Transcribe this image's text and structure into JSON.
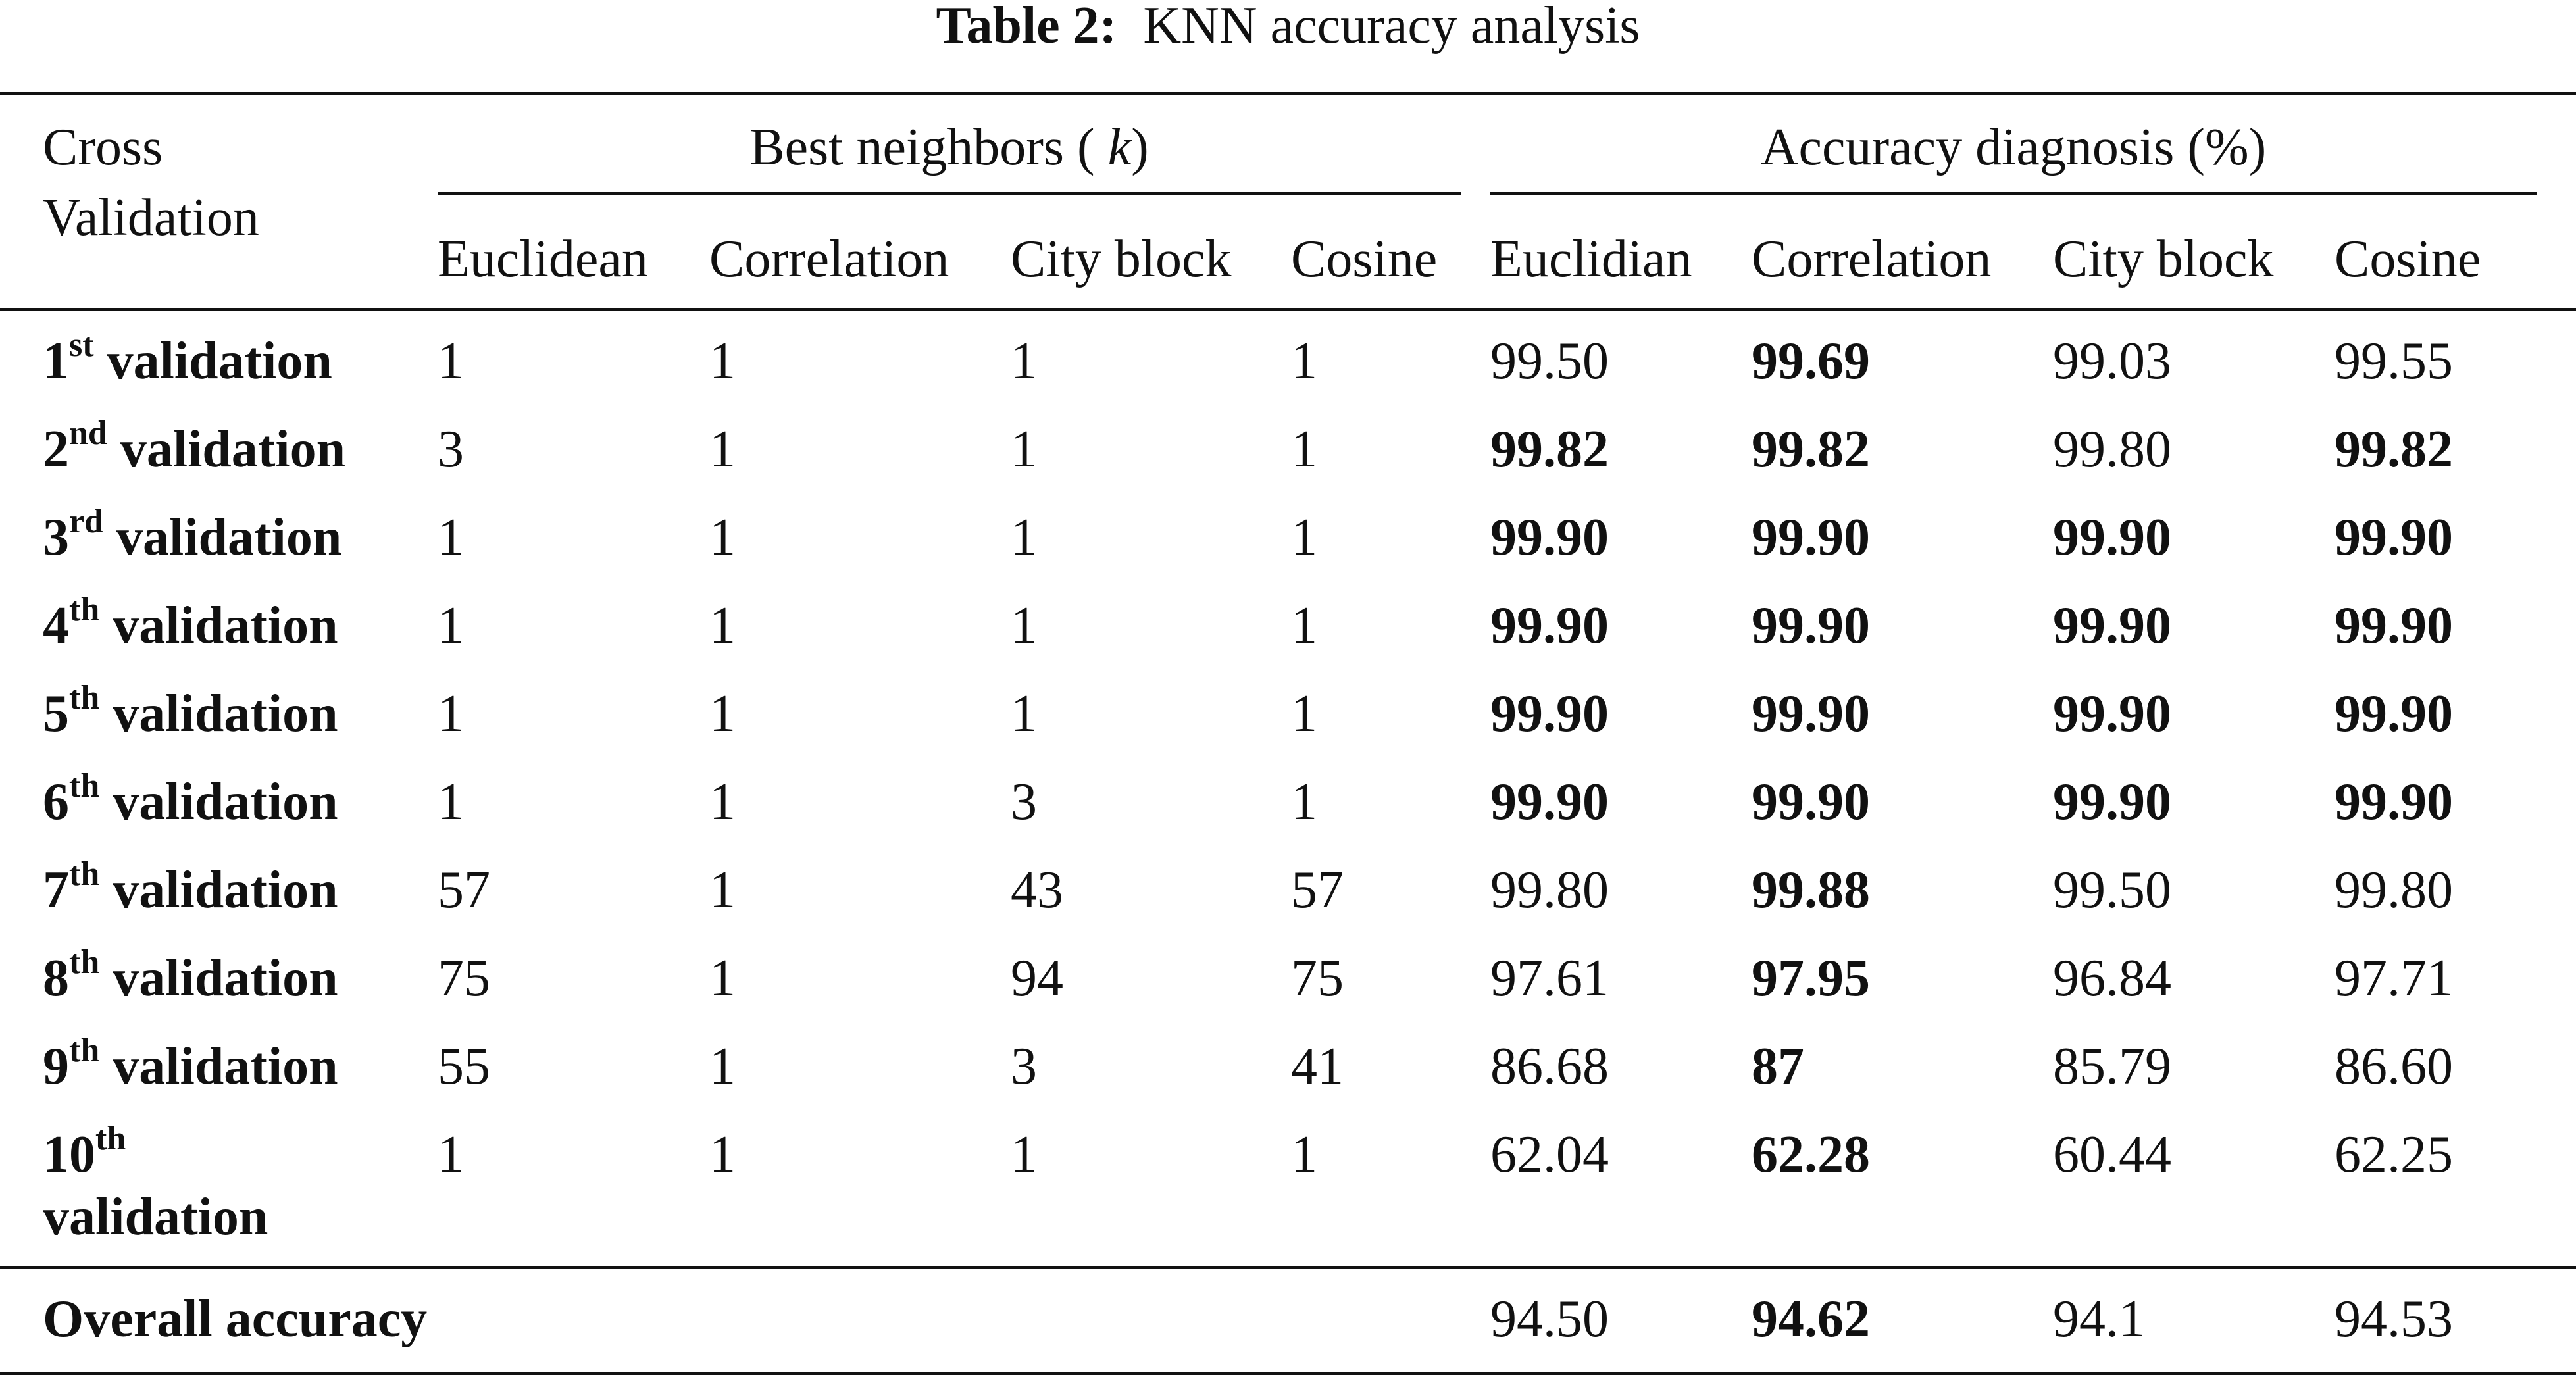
{
  "caption": {
    "label": "Table 2:",
    "text": "KNN accuracy analysis"
  },
  "header": {
    "row_header_line1": "Cross",
    "row_header_line2": "Validation",
    "group_neighbors": {
      "prefix": "Best neighbors (",
      "variable": "k",
      "suffix": ")"
    },
    "group_accuracy": "Accuracy diagnosis (%)",
    "neighbor_columns": [
      "Euclidean",
      "Correlation",
      "City block",
      "Cosine"
    ],
    "accuracy_columns": [
      "Euclidian",
      "Correlation",
      "City block",
      "Cosine"
    ]
  },
  "rows": [
    {
      "num": "1",
      "ord": "st",
      "word": "validation",
      "k": [
        "1",
        "1",
        "1",
        "1"
      ],
      "acc": [
        "99.50",
        "99.69",
        "99.03",
        "99.55"
      ],
      "bold": [
        false,
        true,
        false,
        false
      ]
    },
    {
      "num": "2",
      "ord": "nd",
      "word": "validation",
      "k": [
        "3",
        "1",
        "1",
        "1"
      ],
      "acc": [
        "99.82",
        "99.82",
        "99.80",
        "99.82"
      ],
      "bold": [
        true,
        true,
        false,
        true
      ]
    },
    {
      "num": "3",
      "ord": "rd",
      "word": "validation",
      "k": [
        "1",
        "1",
        "1",
        "1"
      ],
      "acc": [
        "99.90",
        "99.90",
        "99.90",
        "99.90"
      ],
      "bold": [
        true,
        true,
        true,
        true
      ]
    },
    {
      "num": "4",
      "ord": "th",
      "word": "validation",
      "k": [
        "1",
        "1",
        "1",
        "1"
      ],
      "acc": [
        "99.90",
        "99.90",
        "99.90",
        "99.90"
      ],
      "bold": [
        true,
        true,
        true,
        true
      ]
    },
    {
      "num": "5",
      "ord": "th",
      "word": "validation",
      "k": [
        "1",
        "1",
        "1",
        "1"
      ],
      "acc": [
        "99.90",
        "99.90",
        "99.90",
        "99.90"
      ],
      "bold": [
        true,
        true,
        true,
        true
      ]
    },
    {
      "num": "6",
      "ord": "th",
      "word": "validation",
      "k": [
        "1",
        "1",
        "3",
        "1"
      ],
      "acc": [
        "99.90",
        "99.90",
        "99.90",
        "99.90"
      ],
      "bold": [
        true,
        true,
        true,
        true
      ]
    },
    {
      "num": "7",
      "ord": "th",
      "word": "validation",
      "k": [
        "57",
        "1",
        "43",
        "57"
      ],
      "acc": [
        "99.80",
        "99.88",
        "99.50",
        "99.80"
      ],
      "bold": [
        false,
        true,
        false,
        false
      ]
    },
    {
      "num": "8",
      "ord": "th",
      "word": "validation",
      "k": [
        "75",
        "1",
        "94",
        "75"
      ],
      "acc": [
        "97.61",
        "97.95",
        "96.84",
        "97.71"
      ],
      "bold": [
        false,
        true,
        false,
        false
      ]
    },
    {
      "num": "9",
      "ord": "th",
      "word": "validation",
      "k": [
        "55",
        "1",
        "3",
        "41"
      ],
      "acc": [
        "86.68",
        "87",
        "85.79",
        "86.60"
      ],
      "bold": [
        false,
        true,
        false,
        false
      ]
    },
    {
      "num": "10",
      "ord": "th",
      "word": "validation",
      "k": [
        "1",
        "1",
        "1",
        "1"
      ],
      "acc": [
        "62.04",
        "62.28",
        "60.44",
        "62.25"
      ],
      "bold": [
        false,
        true,
        false,
        false
      ]
    }
  ],
  "overall": {
    "label": "Overall accuracy",
    "acc": [
      "94.50",
      "94.62",
      "94.1",
      "94.53"
    ],
    "bold": [
      false,
      true,
      false,
      false
    ]
  }
}
